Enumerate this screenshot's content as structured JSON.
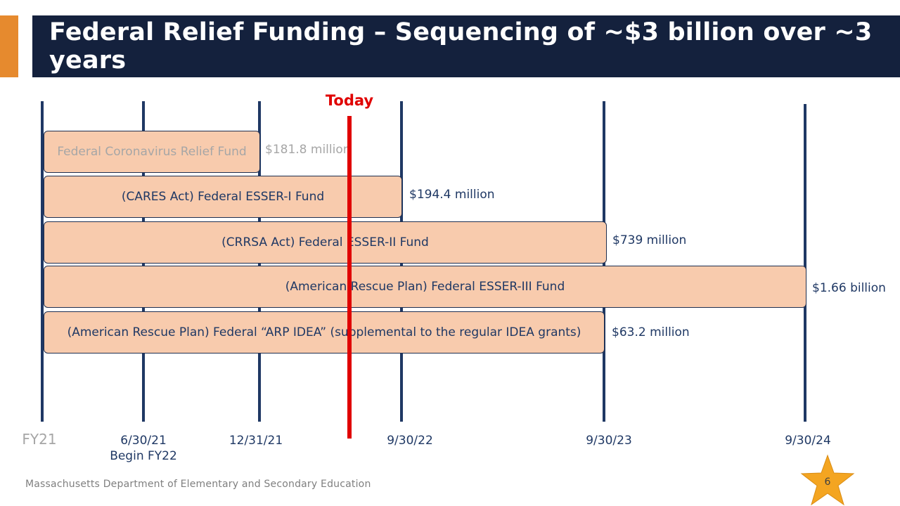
{
  "title": "Federal Relief Funding – Sequencing of ~$3 billion over ~3 years",
  "today_label": "Today",
  "funds": [
    {
      "name": "Federal Coronavirus Relief Fund",
      "amount": "$181.8 million"
    },
    {
      "name": "(CARES Act) Federal ESSER-I Fund",
      "amount": "$194.4 million"
    },
    {
      "name": "(CRRSA Act) Federal ESSER-II Fund",
      "amount": "$739 million"
    },
    {
      "name": "(American Rescue Plan) Federal ESSER-III Fund",
      "amount": "$1.66 billion"
    },
    {
      "name": "(American Rescue Plan) Federal “ARP IDEA” (supplemental to the regular IDEA grants)",
      "amount": "$63.2 million"
    }
  ],
  "timeline_ticks": [
    {
      "label": "FY21",
      "sub": ""
    },
    {
      "label": "6/30/21",
      "sub": "Begin FY22"
    },
    {
      "label": "12/31/21",
      "sub": ""
    },
    {
      "label": "9/30/22",
      "sub": ""
    },
    {
      "label": "9/30/23",
      "sub": ""
    },
    {
      "label": "9/30/24",
      "sub": ""
    }
  ],
  "footer": "Massachusetts Department of Elementary and Secondary Education",
  "page_number": "6",
  "colors": {
    "title_bg": "#14213d",
    "accent": "#e68a2e",
    "bar_fill": "#f8cbad",
    "timeline": "#1f3864",
    "today": "#e00000",
    "faded": "#a6a6a6",
    "star": "#f4a521"
  }
}
